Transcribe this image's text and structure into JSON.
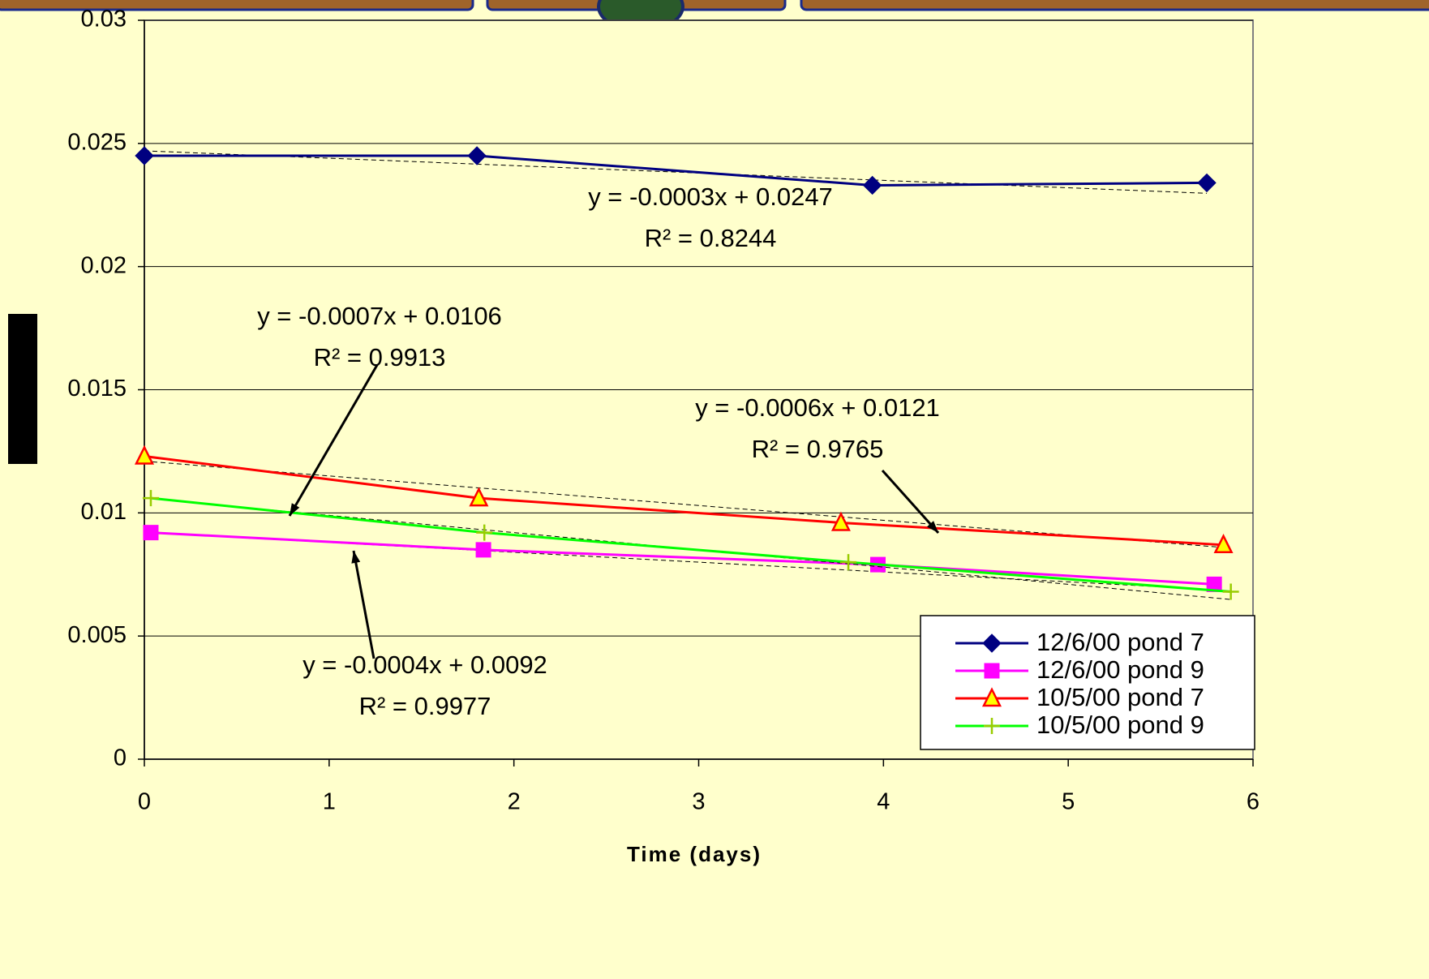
{
  "chart_data": {
    "type": "line",
    "x_label": "Time (days)",
    "xlim": [
      0,
      6
    ],
    "xticks": [
      0,
      1,
      2,
      3,
      4,
      5,
      6
    ],
    "ylim": [
      0,
      0.03
    ],
    "yticks": [
      0,
      0.005,
      0.01,
      0.015,
      0.02,
      0.025,
      0.03
    ],
    "grid": true,
    "legend": "lower right",
    "series": [
      {
        "name": "12/6/00 pond 7",
        "color": "#000080",
        "marker": "diamond",
        "marker_color": "#000080",
        "x": [
          0,
          1.8,
          3.94,
          5.75
        ],
        "values": [
          0.0245,
          0.0245,
          0.0233,
          0.0234
        ],
        "trendline": {
          "slope": -0.0003,
          "intercept": 0.0247,
          "equation": "y = -0.0003x + 0.0247",
          "r_squared": "R² = 0.8244"
        }
      },
      {
        "name": "12/6/00 pond 9",
        "color": "#ff00ff",
        "marker": "square",
        "marker_color": "#ff00ff",
        "x": [
          0.035,
          1.835,
          3.97,
          5.79
        ],
        "values": [
          0.0092,
          0.0085,
          0.0079,
          0.0071
        ],
        "trendline": {
          "slope": -0.0004,
          "intercept": 0.0092,
          "equation": "y = -0.0004x + 0.0092",
          "r_squared": "R² = 0.9977"
        }
      },
      {
        "name": "10/5/00 pond 7",
        "color": "#ff0000",
        "marker": "triangle",
        "marker_color": "#ffff00",
        "x": [
          0,
          1.81,
          3.77,
          5.84
        ],
        "values": [
          0.0123,
          0.0106,
          0.0096,
          0.0087
        ],
        "trendline": {
          "slope": -0.0006,
          "intercept": 0.0121,
          "equation": "y = -0.0006x + 0.0121",
          "r_squared": "R² = 0.9765"
        }
      },
      {
        "name": "10/5/00 pond 9",
        "color": "#00ff00",
        "marker": "plus",
        "marker_color": "#99cc00",
        "x": [
          0.035,
          1.84,
          3.81,
          5.88
        ],
        "values": [
          0.0106,
          0.0092,
          0.008,
          0.0068
        ],
        "trendline": {
          "slope": -0.0007,
          "intercept": 0.0106,
          "equation": "y = -0.0007x + 0.0106",
          "r_squared": "R² = 0.9913"
        }
      }
    ]
  }
}
